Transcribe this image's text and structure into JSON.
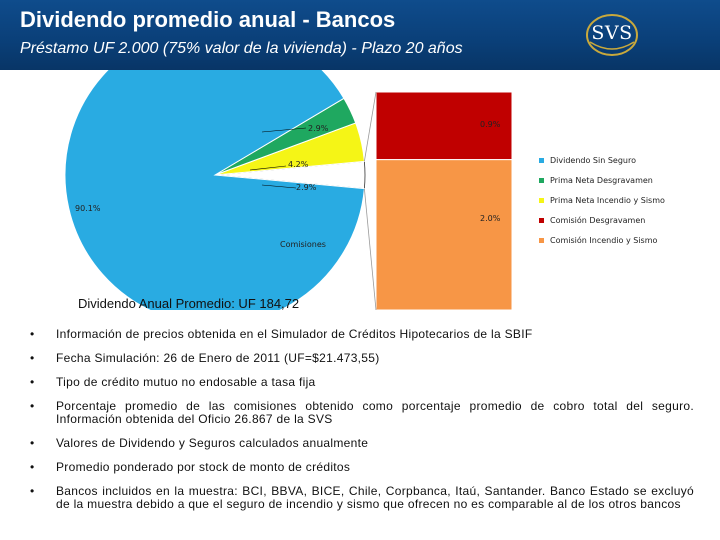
{
  "header": {
    "title": "Dividendo promedio anual - Bancos",
    "subtitle": "Préstamo UF 2.000 (75% valor de la vivienda) - Plazo 20 años",
    "logo_text": "SVS"
  },
  "chart_data": {
    "type": "pie",
    "title": "",
    "slices": [
      {
        "name": "Dividendo Sin Seguro",
        "value": 90.1,
        "label": "90.1%",
        "color": "#29abe2"
      },
      {
        "name": "Prima Neta Desgravamen",
        "value": 2.9,
        "label": "2.9%",
        "color": "#1fa860"
      },
      {
        "name": "Prima Neta Incendio y Sismo",
        "value": 4.2,
        "label": "4.2%",
        "color": "#f5f516"
      },
      {
        "name": "Comisiones",
        "value": 2.9,
        "label": "2.9%",
        "color": "#ffffff"
      }
    ],
    "breakdown": {
      "label": "Comisiones",
      "type": "stacked-bar",
      "segments": [
        {
          "name": "Comisión Desgravamen",
          "value": 0.9,
          "label": "0.9%",
          "color": "#c00000"
        },
        {
          "name": "Comisión Incendio y Sismo",
          "value": 2.0,
          "label": "2.0%",
          "color": "#f79646"
        }
      ]
    },
    "legend": {
      "placement": "right",
      "items": [
        {
          "name": "Dividendo Sin Seguro",
          "color": "#29abe2"
        },
        {
          "name": "Prima Neta Desgravamen",
          "color": "#1fa860"
        },
        {
          "name": "Prima Neta Incendio y Sismo",
          "color": "#f5f516"
        },
        {
          "name": "Comisión Desgravamen",
          "color": "#c00000"
        },
        {
          "name": "Comisión Incendio y Sismo",
          "color": "#f79646"
        }
      ]
    }
  },
  "summary": {
    "dividend_text": "Dividendo Anual Promedio: UF 184,72"
  },
  "notes": [
    "Información de precios obtenida en el Simulador de Créditos Hipotecarios de la SBIF",
    "Fecha Simulación: 26 de Enero de 2011 (UF=$21.473,55)",
    "Tipo de crédito mutuo no endosable a tasa fija",
    "Porcentaje promedio de las comisiones obtenido como porcentaje promedio de cobro total del seguro. Información obtenida del Oficio 26.867 de la SVS",
    "Valores de Dividendo y Seguros calculados anualmente",
    "Promedio ponderado por stock de monto de créditos",
    "Bancos incluidos en la muestra: BCI, BBVA, BICE, Chile, Corpbanca, Itaú, Santander. Banco Estado se excluyó de la muestra debido a que el seguro de incendio y sismo que ofrecen no es comparable al de los otros bancos"
  ],
  "bullet_char": "•"
}
